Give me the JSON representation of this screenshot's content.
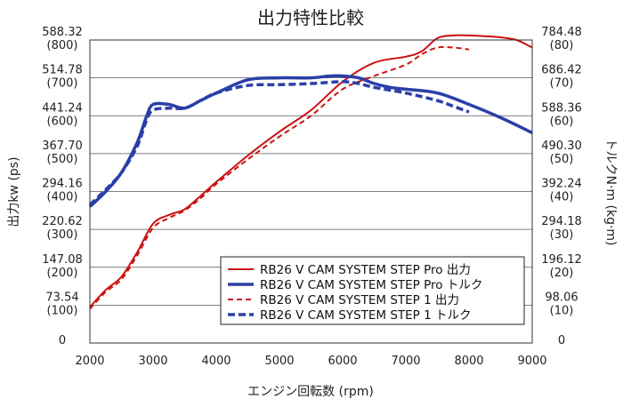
{
  "chart_data": {
    "type": "line",
    "title": "出力特性比較",
    "xlabel": "エンジン回転数 (rpm)",
    "ylabel_left": "出力kw (ps)",
    "ylabel_right": "トルクN·m (kg·m)",
    "xlim": [
      2000,
      9000
    ],
    "x_ticks": [
      "2000",
      "3000",
      "4000",
      "5000",
      "6000",
      "7000",
      "8000",
      "9000"
    ],
    "ylim_left_kw": [
      0,
      588.32
    ],
    "left_ticks": [
      {
        "kw": "0",
        "ps": ""
      },
      {
        "kw": "73.54",
        "ps": "(100)"
      },
      {
        "kw": "147.08",
        "ps": "(200)"
      },
      {
        "kw": "220.62",
        "ps": "(300)"
      },
      {
        "kw": "294.16",
        "ps": "(400)"
      },
      {
        "kw": "367.70",
        "ps": "(500)"
      },
      {
        "kw": "441.24",
        "ps": "(600)"
      },
      {
        "kw": "514.78",
        "ps": "(700)"
      },
      {
        "kw": "588.32",
        "ps": "(800)"
      }
    ],
    "right_ticks": [
      {
        "nm": "0",
        "kgm": ""
      },
      {
        "nm": "98.06",
        "kgm": "(10)"
      },
      {
        "nm": "196.12",
        "kgm": "(20)"
      },
      {
        "nm": "294.18",
        "kgm": "(30)"
      },
      {
        "nm": "392.24",
        "kgm": "(40)"
      },
      {
        "nm": "490.30",
        "kgm": "(50)"
      },
      {
        "nm": "588.36",
        "kgm": "(60)"
      },
      {
        "nm": "686.42",
        "kgm": "(70)"
      },
      {
        "nm": "784.48",
        "kgm": "(80)"
      }
    ],
    "grid": "horizontal",
    "legend_position": "bottom-right",
    "series": [
      {
        "name": "RB26 V CAM SYSTEM STEP Pro 出力",
        "axis": "left",
        "unit": "ps",
        "color": "#cc1111",
        "dashed": false,
        "width": 2,
        "x": [
          2000,
          2250,
          2500,
          2750,
          3000,
          3250,
          3500,
          3750,
          4000,
          4500,
          5000,
          5500,
          6000,
          6500,
          7000,
          7250,
          7500,
          7750,
          8000,
          8250,
          8500,
          8750,
          9000
        ],
        "y": [
          95,
          140,
          175,
          240,
          315,
          338,
          353,
          388,
          425,
          495,
          558,
          615,
          690,
          740,
          756,
          770,
          805,
          812,
          812,
          810,
          807,
          800,
          780
        ]
      },
      {
        "name": "RB26 V CAM SYSTEM STEP Pro トルク",
        "axis": "right",
        "unit": "kgm",
        "color": "#2b3fa8",
        "dashed": false,
        "width": 3.5,
        "x": [
          2000,
          2250,
          2500,
          2750,
          2900,
          3000,
          3250,
          3500,
          3750,
          4000,
          4500,
          5000,
          5500,
          5800,
          6000,
          6250,
          6500,
          6750,
          7000,
          7500,
          8000,
          8500,
          9000
        ],
        "y": [
          36,
          40,
          45,
          53,
          60,
          63,
          63,
          62,
          64,
          66,
          69.5,
          70,
          70,
          70.5,
          70.5,
          70,
          68.5,
          67.5,
          67,
          66,
          63,
          59.5,
          55.5
        ]
      },
      {
        "name": "RB26 V CAM SYSTEM STEP 1 出力",
        "axis": "left",
        "unit": "ps",
        "color": "#cc1111",
        "dashed": true,
        "width": 2,
        "x": [
          2000,
          2250,
          2500,
          2750,
          3000,
          3250,
          3500,
          3750,
          4000,
          4500,
          5000,
          5500,
          6000,
          6500,
          7000,
          7250,
          7500,
          7750,
          8000
        ],
        "y": [
          90,
          135,
          168,
          232,
          304,
          330,
          350,
          382,
          420,
          485,
          545,
          600,
          670,
          705,
          735,
          762,
          780,
          780,
          775
        ]
      },
      {
        "name": "RB26 V CAM SYSTEM STEP 1 トルク",
        "axis": "right",
        "unit": "kgm",
        "color": "#2b3fa8",
        "dashed": true,
        "width": 3.5,
        "x": [
          2000,
          2250,
          2500,
          2750,
          2900,
          3000,
          3250,
          3500,
          3750,
          4000,
          4500,
          5000,
          5500,
          6000,
          6250,
          6500,
          7000,
          7500,
          7750,
          8000
        ],
        "y": [
          36.5,
          40.5,
          45,
          52,
          59,
          61.5,
          62,
          62,
          64,
          66,
          68,
          68.2,
          68.5,
          69,
          68.5,
          67.5,
          66,
          64,
          62.5,
          61
        ]
      }
    ]
  }
}
